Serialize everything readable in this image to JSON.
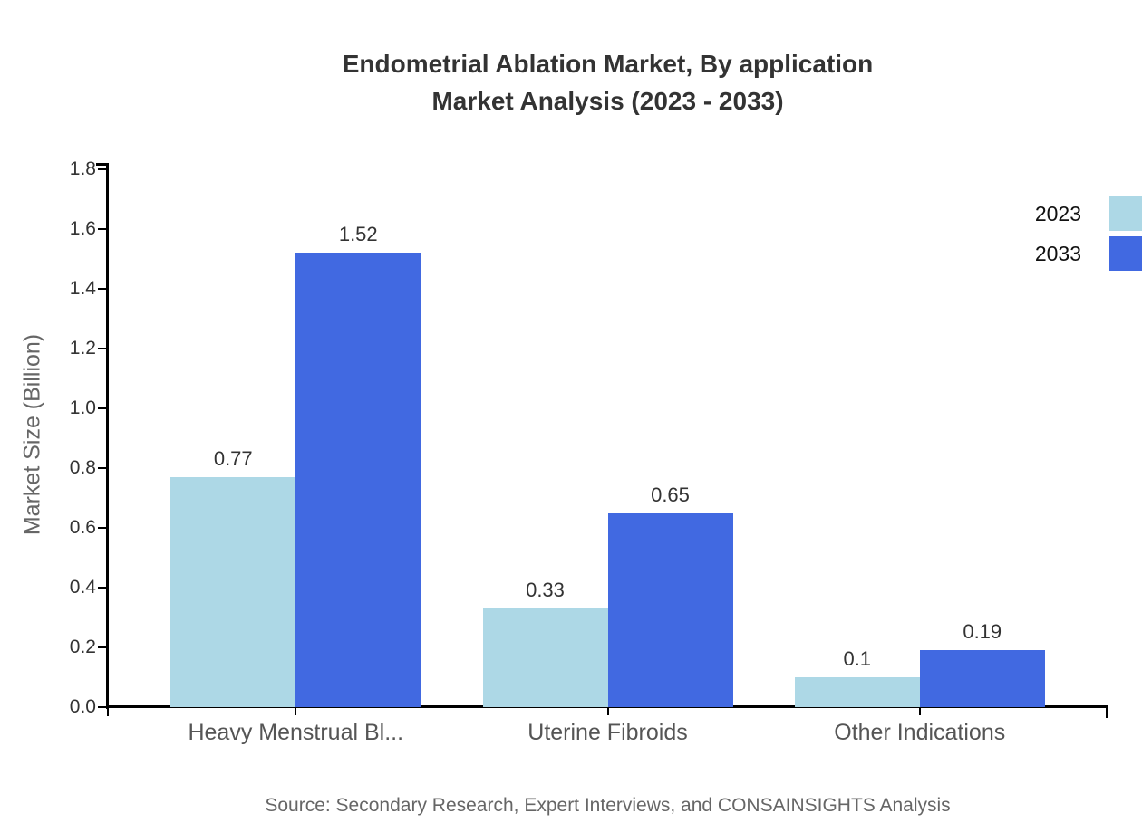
{
  "title": {
    "line1": "Endometrial Ablation Market, By application",
    "line2": "Market Analysis (2023 - 2033)"
  },
  "chart_data": {
    "type": "bar",
    "categories": [
      "Heavy Menstrual Bl...",
      "Uterine Fibroids",
      "Other Indications"
    ],
    "series": [
      {
        "name": "2023",
        "color": "#ADD8E6",
        "values": [
          0.77,
          0.33,
          0.1
        ]
      },
      {
        "name": "2033",
        "color": "#4169E1",
        "values": [
          1.52,
          0.65,
          0.19
        ]
      }
    ],
    "title": "Endometrial Ablation Market, By application Market Analysis (2023 - 2033)",
    "xlabel": "",
    "ylabel": "Market Size (Billion)",
    "ylim": [
      0,
      1.8
    ],
    "ytick_step": 0.2,
    "ytick_labels": [
      "0.0",
      "0.2",
      "0.4",
      "0.6",
      "0.8",
      "1.0",
      "1.2",
      "1.4",
      "1.6",
      "1.8"
    ],
    "value_labels": [
      [
        "0.77",
        "0.33",
        "0.1"
      ],
      [
        "1.52",
        "0.65",
        "0.19"
      ]
    ],
    "grid": false,
    "legend_position": "top-right",
    "axis_color": "#000000",
    "text_colors": {
      "title": "#333333",
      "tick_label": "#333333",
      "category_label": "#555555",
      "value_label": "#333333",
      "axis_title": "#666666",
      "legend_label": "#111111",
      "source": "#666666"
    }
  },
  "source": "Source: Secondary Research, Expert Interviews, and CONSAINSIGHTS Analysis"
}
